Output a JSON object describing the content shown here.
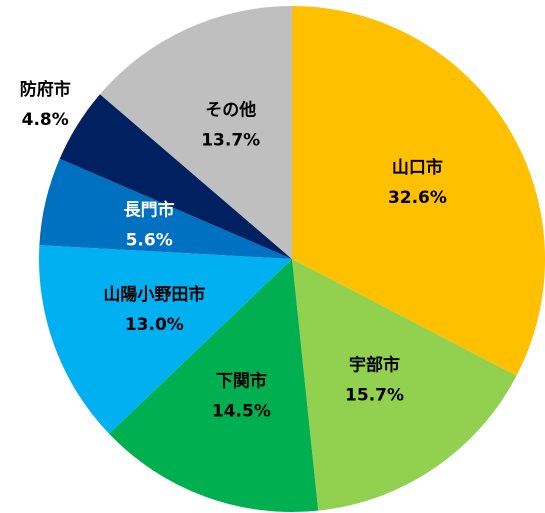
{
  "chart_data": {
    "type": "pie",
    "categories": [
      "山口市",
      "宇部市",
      "下関市",
      "山陽小野田市",
      "長門市",
      "防府市",
      "その他"
    ],
    "values": [
      32.6,
      15.7,
      14.5,
      13.0,
      5.6,
      4.8,
      13.7
    ],
    "value_labels": [
      "32.6%",
      "15.7%",
      "14.5%",
      "13.0%",
      "5.6%",
      "4.8%",
      "13.7%"
    ],
    "colors": [
      "#FFC000",
      "#92D050",
      "#00B050",
      "#00B0F0",
      "#0070C0",
      "#002060",
      "#BFBFBF"
    ],
    "label_colors": [
      "#000000",
      "#000000",
      "#000000",
      "#000000",
      "#FFFFFF",
      "#000000",
      "#000000"
    ]
  }
}
